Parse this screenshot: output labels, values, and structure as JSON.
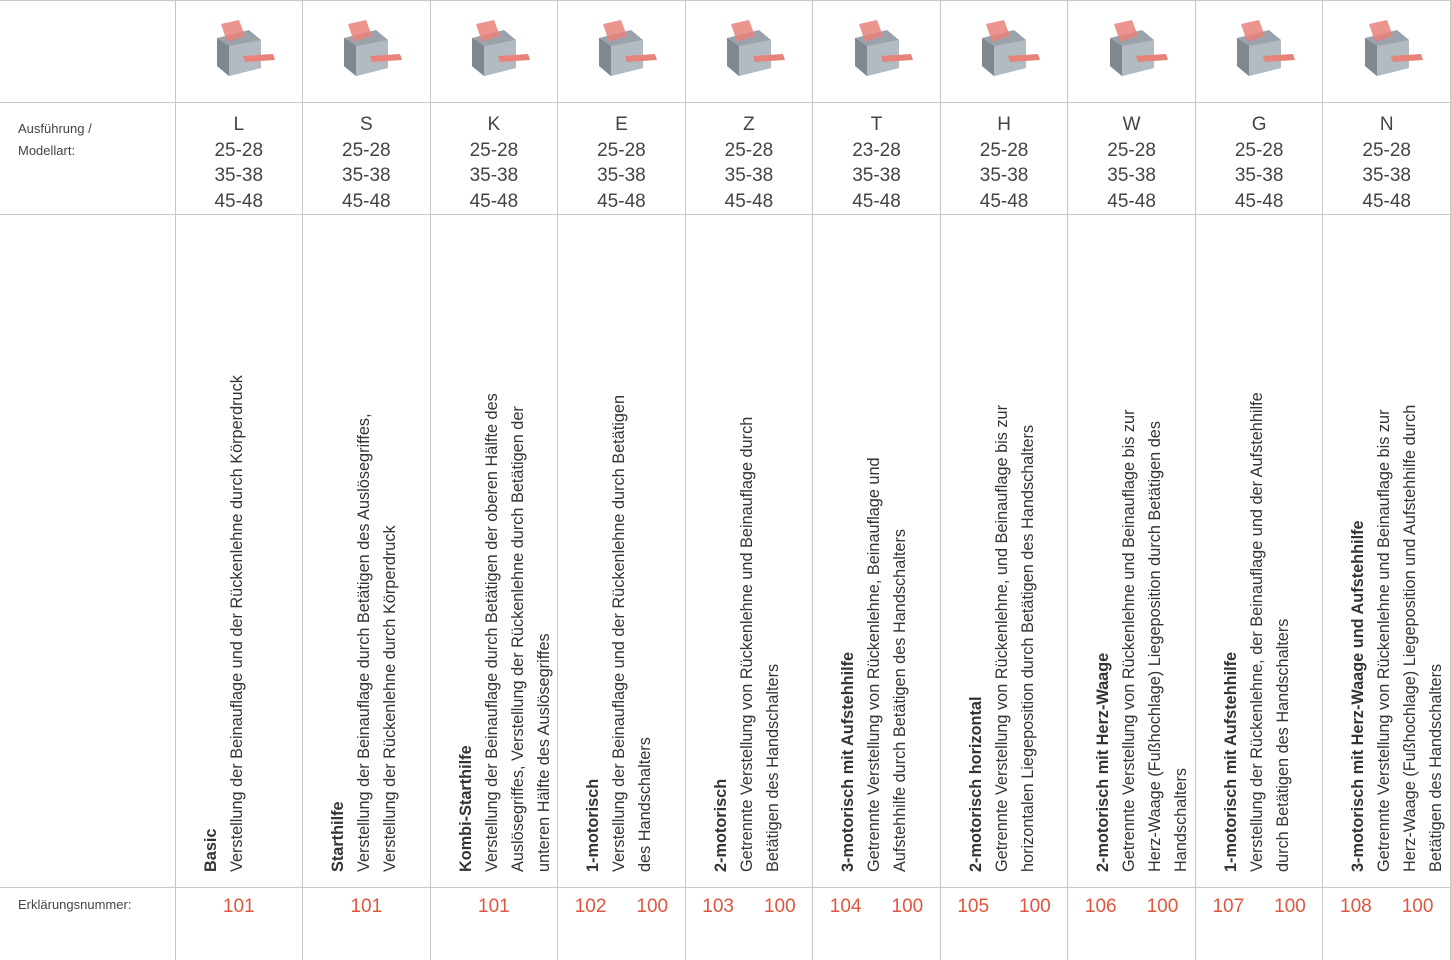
{
  "row_labels": {
    "model": "Ausführung / Modellart:",
    "number": "Erklärungsnummer:"
  },
  "columns": [
    {
      "model": "L",
      "sizes": [
        "25-28",
        "35-38",
        "45-48"
      ],
      "title": "Basic",
      "lines": [
        "Verstellung der Beinauflage und der Rückenlehne durch Körperdruck"
      ],
      "numbers": [
        101
      ]
    },
    {
      "model": "S",
      "sizes": [
        "25-28",
        "35-38",
        "45-48"
      ],
      "title": "Starthilfe",
      "lines": [
        "Verstellung der Beinauflage durch Betätigen des Auslösegriffes,",
        "Verstellung der Rückenlehne durch Körperdruck"
      ],
      "numbers": [
        101
      ]
    },
    {
      "model": "K",
      "sizes": [
        "25-28",
        "35-38",
        "45-48"
      ],
      "title": "Kombi-Starthilfe",
      "lines": [
        "Verstellung der Beinauflage durch Betätigen der oberen Hälfte des",
        "Auslösegriffes, Verstellung der Rückenlehne durch Betätigen der",
        "unteren Hälfte des Auslösegriffes"
      ],
      "numbers": [
        101
      ]
    },
    {
      "model": "E",
      "sizes": [
        "25-28",
        "35-38",
        "45-48"
      ],
      "title": "1-motorisch",
      "lines": [
        "Verstellung der Beinauflage und der Rückenlehne durch Betätigen",
        "des Handschalters"
      ],
      "numbers": [
        102,
        100
      ]
    },
    {
      "model": "Z",
      "sizes": [
        "25-28",
        "35-38",
        "45-48"
      ],
      "title": "2-motorisch",
      "lines": [
        "Getrennte Verstellung von Rückenlehne und Beinauflage durch",
        "Betätigen des Handschalters"
      ],
      "numbers": [
        103,
        100
      ]
    },
    {
      "model": "T",
      "sizes": [
        "23-28",
        "35-38",
        "45-48"
      ],
      "title": "3-motorisch mit Aufstehhilfe",
      "lines": [
        "Getrennte Verstellung von Rückenlehne, Beinauflage und",
        "Aufstehhilfe durch Betätigen des Handschalters"
      ],
      "numbers": [
        104,
        100
      ]
    },
    {
      "model": "H",
      "sizes": [
        "25-28",
        "35-38",
        "45-48"
      ],
      "title": "2-motorisch horizontal",
      "lines": [
        "Getrennte Verstellung von Rückenlehne, und Beinauflage bis zur",
        "horizontalen Liegeposition durch Betätigen des Handschalters"
      ],
      "numbers": [
        105,
        100
      ]
    },
    {
      "model": "W",
      "sizes": [
        "25-28",
        "35-38",
        "45-48"
      ],
      "title": "2-motorisch mit Herz-Waage",
      "lines": [
        "Getrennte Verstellung von Rückenlehne und Beinauflage bis zur",
        "Herz-Waage (Fußhochlage) Liegeposition durch Betätigen des",
        "Handschalters"
      ],
      "numbers": [
        106,
        100
      ]
    },
    {
      "model": "G",
      "sizes": [
        "25-28",
        "35-38",
        "45-48"
      ],
      "title": "1-motorisch mit Aufstehhilfe",
      "lines": [
        "Verstellung der Rückenlehne, der Beinauflage und der Aufstehhilfe",
        "durch Betätigen des Handschalters"
      ],
      "numbers": [
        107,
        100
      ]
    },
    {
      "model": "N",
      "sizes": [
        "25-28",
        "35-38",
        "45-48"
      ],
      "title": "3-motorisch mit Herz-Waage und Aufstehhilfe",
      "lines": [
        "Getrennte Verstellung von Rückenlehne und Beinauflage bis zur",
        "Herz-Waage (Fußhochlage) Liegeposition und Aufstehhilfe durch",
        "Betätigen des Handschalters"
      ],
      "numbers": [
        108,
        100
      ]
    }
  ]
}
